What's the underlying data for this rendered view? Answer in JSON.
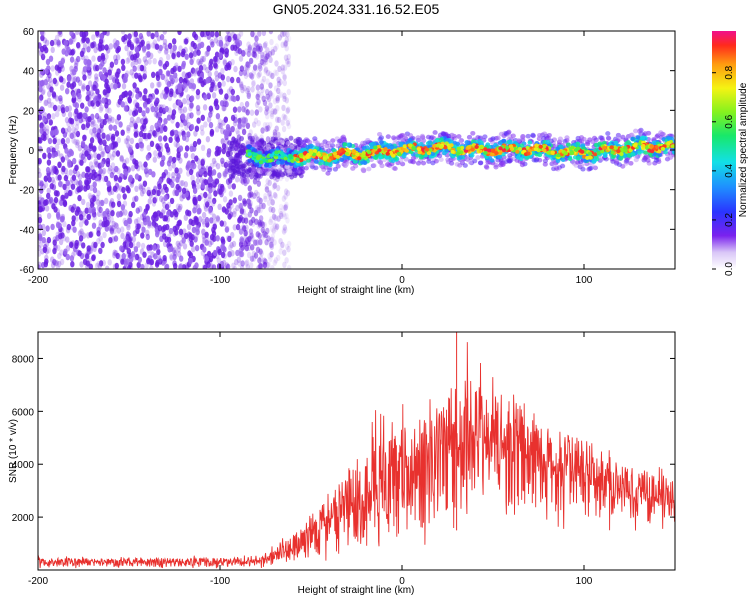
{
  "title": "GN05.2024.331.16.52.E05",
  "colors": {
    "snr_line": "#e8312e",
    "spectrogram_noise": "#6a1fe0",
    "band_core": "#ff2a2a"
  },
  "chart_data": [
    {
      "type": "heatmap",
      "name": "spectrogram",
      "xlabel": "Height of straight line (km)",
      "ylabel": "Frequency (Hz)",
      "xlim": [
        -200,
        150
      ],
      "ylim": [
        -60,
        60
      ],
      "xticks": [
        -200,
        -100,
        0,
        100
      ],
      "yticks": [
        60,
        40,
        20,
        0,
        -20,
        -40,
        -60
      ],
      "colorbar": {
        "label": "Normalized spectral amplitude",
        "range": [
          0,
          0.97
        ],
        "ticks": [
          "0.8",
          "0.6",
          "0.4",
          "0.2",
          "0.0"
        ],
        "tick_values": [
          0.8,
          0.6,
          0.4,
          0.2,
          0.0
        ]
      },
      "regions": [
        {
          "name": "broadband noise",
          "x_range": [
            -200,
            -70
          ],
          "y_range": [
            -60,
            60
          ],
          "amplitude": [
            0.05,
            0.15
          ]
        },
        {
          "name": "signal band",
          "x_range": [
            -85,
            150
          ],
          "center_freq_hz": 0,
          "amplitude": [
            0.3,
            0.97
          ]
        }
      ],
      "band_center": [
        {
          "x": -85,
          "y": -3
        },
        {
          "x": -60,
          "y": -3
        },
        {
          "x": -45,
          "y": -4
        },
        {
          "x": -30,
          "y": -2
        },
        {
          "x": -10,
          "y": 0
        },
        {
          "x": 10,
          "y": 0
        },
        {
          "x": 30,
          "y": 1
        },
        {
          "x": 60,
          "y": 0
        },
        {
          "x": 90,
          "y": -1
        },
        {
          "x": 120,
          "y": 0
        },
        {
          "x": 150,
          "y": 2
        }
      ]
    },
    {
      "type": "line",
      "name": "snr",
      "xlabel": "Height of straight line (km)",
      "ylabel": "SNR (10 * v/v)",
      "xlim": [
        -200,
        150
      ],
      "ylim": [
        0,
        9000
      ],
      "xticks": [
        -200,
        -100,
        0,
        100
      ],
      "yticks": [
        8000,
        6000,
        4000,
        2000
      ],
      "envelope": [
        {
          "x": -200,
          "low": 50,
          "mean": 280,
          "high": 550
        },
        {
          "x": -100,
          "low": 50,
          "mean": 280,
          "high": 550
        },
        {
          "x": -75,
          "low": 50,
          "mean": 350,
          "high": 700
        },
        {
          "x": -60,
          "low": 100,
          "mean": 800,
          "high": 1600
        },
        {
          "x": -50,
          "low": 150,
          "mean": 1300,
          "high": 2500
        },
        {
          "x": -40,
          "low": 200,
          "mean": 1700,
          "high": 3200
        },
        {
          "x": -20,
          "low": 300,
          "mean": 2200,
          "high": 6100
        },
        {
          "x": 0,
          "low": 400,
          "mean": 3300,
          "high": 6300
        },
        {
          "x": 20,
          "low": 700,
          "mean": 4300,
          "high": 6900
        },
        {
          "x": 30,
          "low": 900,
          "mean": 4600,
          "high": 9000
        },
        {
          "x": 40,
          "low": 1200,
          "mean": 4800,
          "high": 8400
        },
        {
          "x": 60,
          "low": 1500,
          "mean": 4600,
          "high": 6800
        },
        {
          "x": 80,
          "low": 1600,
          "mean": 4000,
          "high": 5400
        },
        {
          "x": 100,
          "low": 1400,
          "mean": 3500,
          "high": 4900
        },
        {
          "x": 120,
          "low": 1400,
          "mean": 3000,
          "high": 4600
        },
        {
          "x": 150,
          "low": 1500,
          "mean": 2600,
          "high": 4000
        }
      ]
    }
  ]
}
